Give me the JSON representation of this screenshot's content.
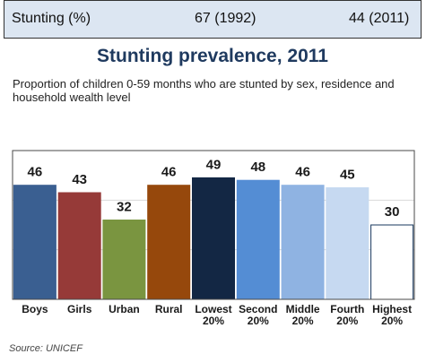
{
  "stat_bar": {
    "label": "Stunting (%)",
    "value_1992": "67 (1992)",
    "value_2011": "44 (2011)"
  },
  "chart_data": {
    "type": "bar",
    "title": "Stunting prevalence, 2011",
    "subtitle": "Proportion of children 0-59 months who are stunted by sex, residence and household wealth level",
    "categories": [
      "Boys",
      "Girls",
      "Urban",
      "Rural",
      "Lowest 20%",
      "Second 20%",
      "Middle 20%",
      "Fourth 20%",
      "Highest 20%"
    ],
    "values": [
      46,
      43,
      32,
      46,
      49,
      48,
      46,
      45,
      30
    ],
    "data_labels": [
      "46",
      "43",
      "32",
      "46",
      "49",
      "48",
      "46",
      "45",
      "30"
    ],
    "ylim": [
      0,
      60
    ],
    "grid": true,
    "xlabel": "",
    "ylabel": "",
    "bar_colors": [
      "#3a5f91",
      "#963a38",
      "#7a9540",
      "#96480c",
      "#132744",
      "#548dd4",
      "#8fb3e2",
      "#c6d9f1",
      "#ffffff"
    ],
    "bar_border_colors": [
      "#3a5f91",
      "#963a38",
      "#7a9540",
      "#96480c",
      "#132744",
      "#548dd4",
      "#8fb3e2",
      "#c6d9f1",
      "#17375e"
    ]
  },
  "source": "Source: UNICEF",
  "colors": {
    "stat_bar_bg": "#dce6f2",
    "title_color": "#1f3a5f",
    "frame": "#4a4a4a",
    "gridline": "#d9d9d9"
  }
}
